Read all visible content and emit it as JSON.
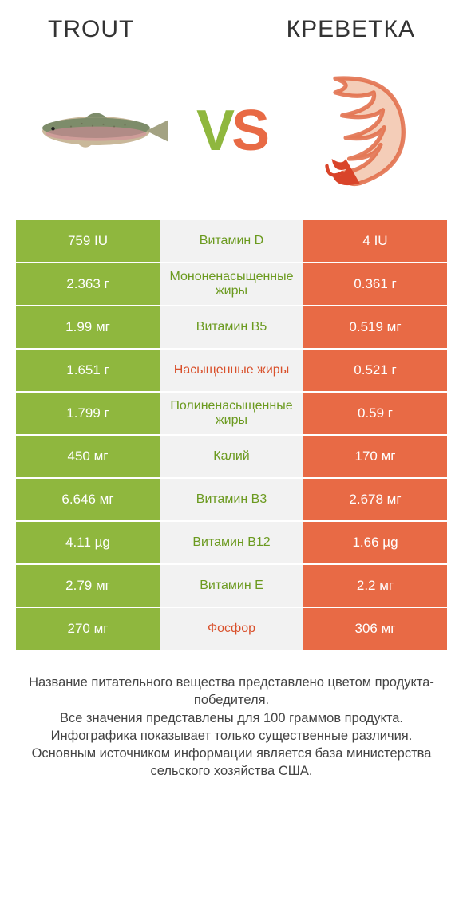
{
  "header": {
    "left_title": "Trout",
    "right_title": "Креветка"
  },
  "vs": {
    "v": "V",
    "s": "S"
  },
  "colors": {
    "left": "#8fb73e",
    "right": "#e86a45",
    "mid_bg": "#f2f2f2",
    "label_left_text": "#6b9a1f",
    "label_right_text": "#d9502b"
  },
  "rows": [
    {
      "left": "759 IU",
      "label": "Витамин D",
      "right": "4 IU",
      "winner": "left"
    },
    {
      "left": "2.363 г",
      "label": "Мононенасыщенные жиры",
      "right": "0.361 г",
      "winner": "left"
    },
    {
      "left": "1.99 мг",
      "label": "Витамин B5",
      "right": "0.519 мг",
      "winner": "left"
    },
    {
      "left": "1.651 г",
      "label": "Насыщенные жиры",
      "right": "0.521 г",
      "winner": "right"
    },
    {
      "left": "1.799 г",
      "label": "Полиненасыщенные жиры",
      "right": "0.59 г",
      "winner": "left"
    },
    {
      "left": "450 мг",
      "label": "Калий",
      "right": "170 мг",
      "winner": "left"
    },
    {
      "left": "6.646 мг",
      "label": "Витамин B3",
      "right": "2.678 мг",
      "winner": "left"
    },
    {
      "left": "4.11 µg",
      "label": "Витамин B12",
      "right": "1.66 µg",
      "winner": "left"
    },
    {
      "left": "2.79 мг",
      "label": "Витамин E",
      "right": "2.2 мг",
      "winner": "left"
    },
    {
      "left": "270 мг",
      "label": "Фосфор",
      "right": "306 мг",
      "winner": "right"
    }
  ],
  "footer_lines": [
    "Название питательного вещества представлено цветом продукта-победителя.",
    "Все значения представлены для 100 граммов продукта.",
    "Инфографика показывает только существенные различия.",
    "Основным источником информации является база министерства сельского хозяйства США."
  ]
}
